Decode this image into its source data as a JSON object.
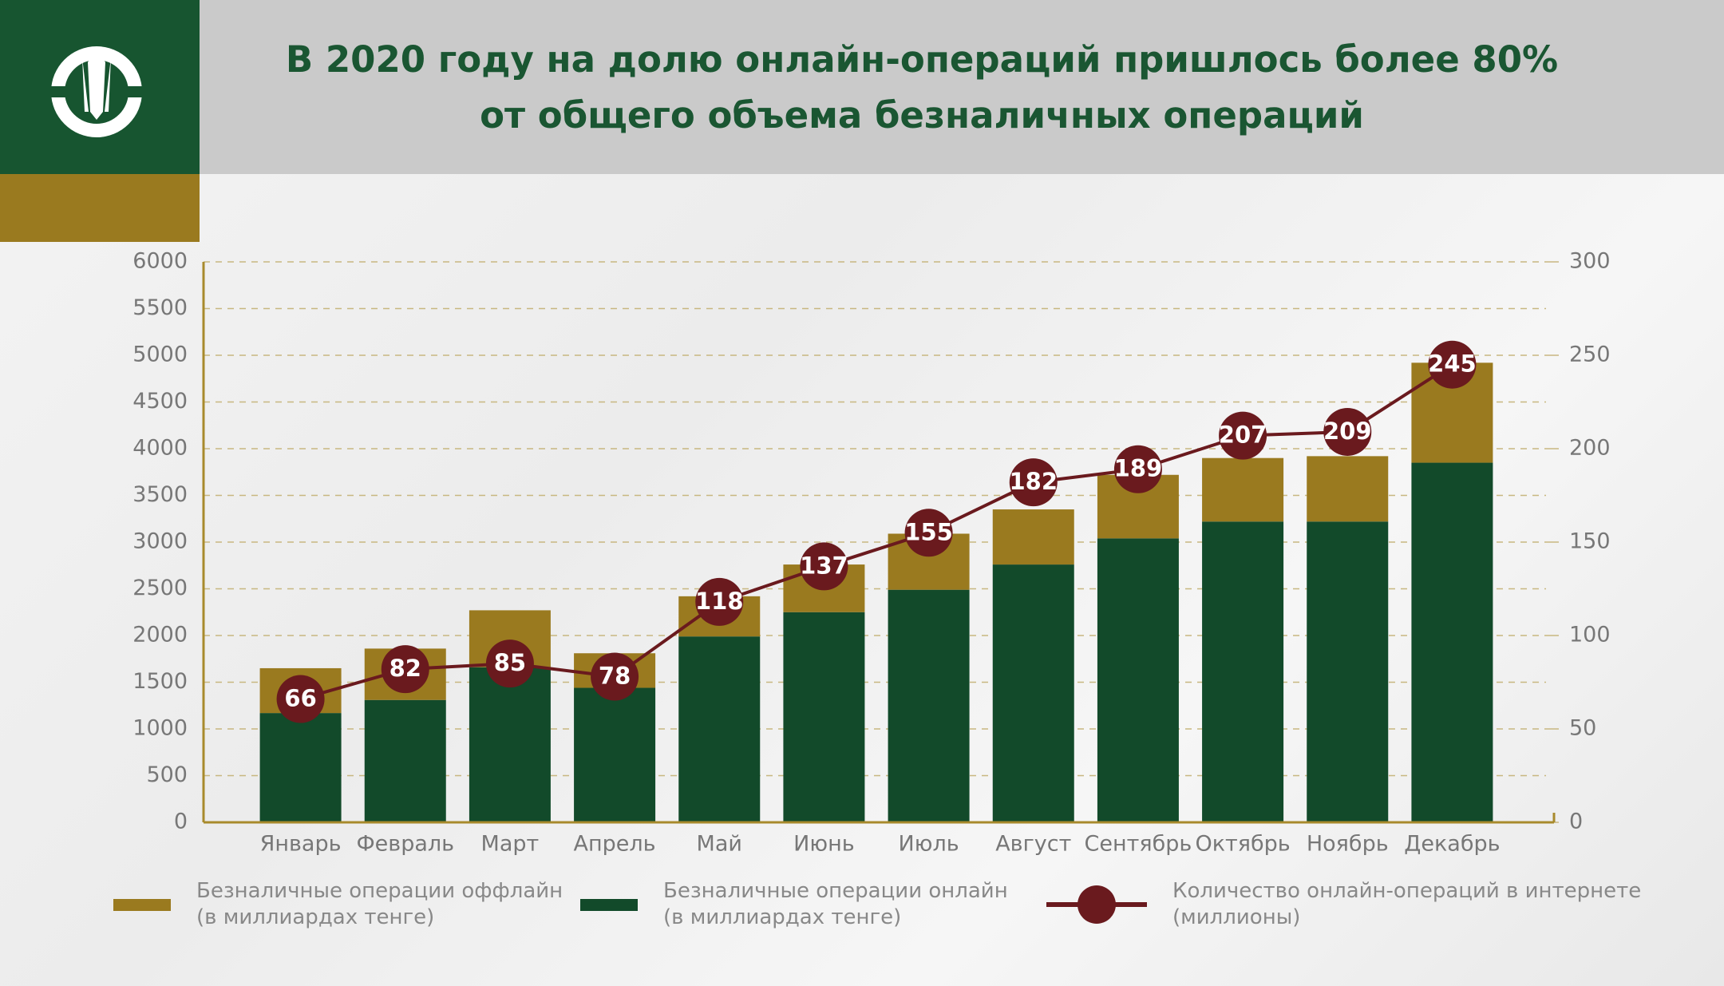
{
  "chart_data": {
    "type": "bar",
    "stacked": true,
    "title": "В 2020 году на долю онлайн-операций пришлось более 80%\nот общего объема безналичных операций",
    "categories": [
      "Январь",
      "Февраль",
      "Март",
      "Апрель",
      "Май",
      "Июнь",
      "Июль",
      "Август",
      "Сентябрь",
      "Октябрь",
      "Ноябрь",
      "Декабрь"
    ],
    "series": [
      {
        "name": "Безналичные операции оффлайн\n(в миллиардах тенге)",
        "type": "bar",
        "color": "#9a7a1f",
        "values": [
          480,
          550,
          610,
          370,
          430,
          510,
          600,
          590,
          680,
          680,
          700,
          1070
        ]
      },
      {
        "name": "Безналичные операции онлайн\n(в миллиардах тенге)",
        "type": "bar",
        "color": "#124a2a",
        "values": [
          1170,
          1310,
          1660,
          1440,
          1990,
          2250,
          2490,
          2760,
          3040,
          3220,
          3220,
          3850
        ]
      },
      {
        "name": "Количество онлайн-операций в интернете\n(миллионы)",
        "type": "line",
        "axis": "y2",
        "color": "#6a1a1e",
        "values": [
          66,
          82,
          85,
          78,
          118,
          137,
          155,
          182,
          189,
          207,
          209,
          245
        ]
      }
    ],
    "ylim": [
      0,
      6000
    ],
    "yticks": [
      0,
      500,
      1000,
      1500,
      2000,
      2500,
      3000,
      3500,
      4000,
      4500,
      5000,
      5500,
      6000
    ],
    "y2lim": [
      0,
      300
    ],
    "y2ticks": [
      0,
      50,
      100,
      150,
      200,
      250,
      300
    ],
    "grid": true
  }
}
